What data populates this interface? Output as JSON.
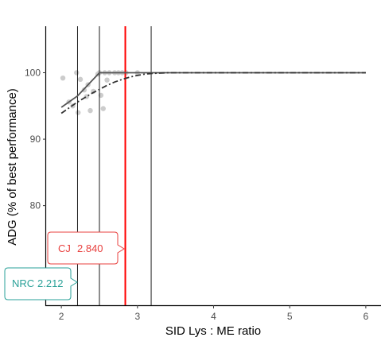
{
  "chart_data": {
    "type": "scatter",
    "xlabel": "SID Lys : ME ratio",
    "ylabel": "ADG (% of best performance)",
    "xlim": [
      1.8,
      6.2
    ],
    "ylim": [
      65,
      107
    ],
    "x_ticks": [
      2,
      3,
      4,
      5,
      6
    ],
    "y_ticks": [
      70,
      80,
      90,
      100
    ],
    "grid": false,
    "points": [
      {
        "x": 2.02,
        "y": 99.2
      },
      {
        "x": 2.1,
        "y": 95.6
      },
      {
        "x": 2.15,
        "y": 95.0
      },
      {
        "x": 2.2,
        "y": 100.0
      },
      {
        "x": 2.22,
        "y": 94.0
      },
      {
        "x": 2.25,
        "y": 99.0
      },
      {
        "x": 2.3,
        "y": 97.4
      },
      {
        "x": 2.33,
        "y": 96.4
      },
      {
        "x": 2.35,
        "y": 98.2
      },
      {
        "x": 2.38,
        "y": 94.3
      },
      {
        "x": 2.42,
        "y": 97.2
      },
      {
        "x": 2.48,
        "y": 99.8
      },
      {
        "x": 2.5,
        "y": 100.0
      },
      {
        "x": 2.52,
        "y": 96.6
      },
      {
        "x": 2.55,
        "y": 94.6
      },
      {
        "x": 2.57,
        "y": 100.0
      },
      {
        "x": 2.6,
        "y": 98.9
      },
      {
        "x": 2.63,
        "y": 100.0
      },
      {
        "x": 2.7,
        "y": 100.0
      },
      {
        "x": 2.75,
        "y": 100.0
      },
      {
        "x": 2.8,
        "y": 100.0
      },
      {
        "x": 2.85,
        "y": 100.0
      },
      {
        "x": 3.0,
        "y": 100.0
      }
    ],
    "series": [
      {
        "style": "solid",
        "x": [
          2.0,
          2.212,
          2.5,
          3.2,
          6.0
        ],
        "y": [
          94.8,
          96.5,
          100.0,
          100.0,
          100.0
        ]
      },
      {
        "style": "dashdot",
        "x": [
          2.0,
          2.1,
          2.2,
          2.3,
          2.4,
          2.5,
          2.6,
          2.7,
          2.8,
          2.9,
          3.0,
          3.1,
          3.2,
          3.4,
          4.0,
          5.0,
          6.0
        ],
        "y": [
          93.9,
          94.7,
          95.5,
          96.2,
          96.9,
          97.5,
          98.1,
          98.6,
          99.0,
          99.35,
          99.6,
          99.8,
          99.9,
          100.0,
          100.0,
          100.0,
          100.0
        ]
      }
    ],
    "vlines": [
      {
        "x": 2.212,
        "color": "#000000"
      },
      {
        "x": 2.5,
        "color": "#000000"
      },
      {
        "x": 2.84,
        "color": "#ff0000"
      },
      {
        "x": 3.18,
        "color": "#000000"
      }
    ],
    "annotations": [
      {
        "label": "CJ",
        "value": "2.840",
        "color": "#e8413f"
      },
      {
        "label": "NRC",
        "value": "2.212",
        "color": "#2aa198"
      }
    ]
  }
}
